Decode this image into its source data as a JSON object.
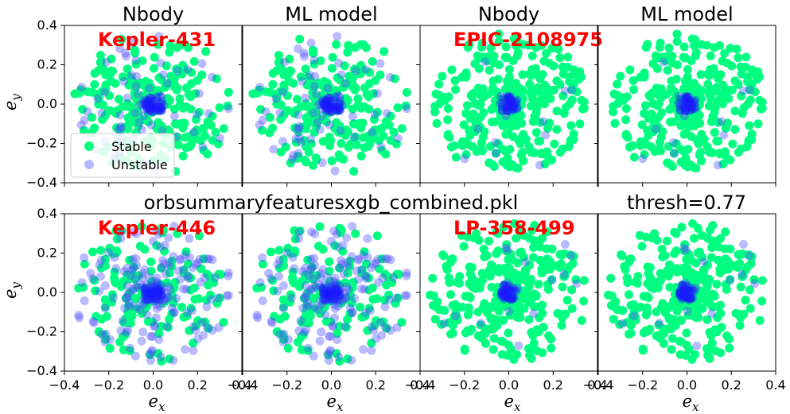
{
  "chart_data": {
    "type": "scatter",
    "xlabel": "e_x",
    "ylabel": "e_y",
    "xlim": [
      -0.4,
      0.4
    ],
    "ylim": [
      -0.4,
      0.4
    ],
    "ticks": [
      -0.4,
      -0.2,
      0.0,
      0.2,
      0.4
    ],
    "tick_labels": [
      "−0.4",
      "−0.2",
      "0.0",
      "0.2",
      "0.4"
    ],
    "grid": false,
    "colors": {
      "stable": "#00ff80",
      "unstable": "#4a4aff"
    },
    "legend": {
      "placement": "lower-left",
      "panel": 0,
      "entries": [
        "Stable",
        "Unstable"
      ]
    },
    "texts": {
      "row0_mid": "",
      "row1_mid": "orbsummaryfeaturesxgb_combined.pkl",
      "row1_right": "thresh=0.77"
    },
    "panels": [
      {
        "row": 0,
        "col": 0,
        "title": "Nbody",
        "label": "Kepler-431",
        "stable_frac": 0.82,
        "seed": 11
      },
      {
        "row": 0,
        "col": 1,
        "title": "ML model",
        "label": "",
        "stable_frac": 0.82,
        "seed": 11
      },
      {
        "row": 0,
        "col": 2,
        "title": "Nbody",
        "label": "EPIC-2108975",
        "stable_frac": 0.95,
        "seed": 23
      },
      {
        "row": 0,
        "col": 3,
        "title": "ML model",
        "label": "",
        "stable_frac": 0.95,
        "seed": 23
      },
      {
        "row": 1,
        "col": 0,
        "title": "",
        "label": "Kepler-446",
        "stable_frac": 0.55,
        "seed": 37
      },
      {
        "row": 1,
        "col": 1,
        "title": "",
        "label": "",
        "stable_frac": 0.55,
        "seed": 37
      },
      {
        "row": 1,
        "col": 2,
        "title": "",
        "label": "LP-358-499",
        "stable_frac": 0.93,
        "seed": 53
      },
      {
        "row": 1,
        "col": 3,
        "title": "",
        "label": "",
        "stable_frac": 0.93,
        "seed": 53
      }
    ],
    "points_per_panel": 320
  }
}
